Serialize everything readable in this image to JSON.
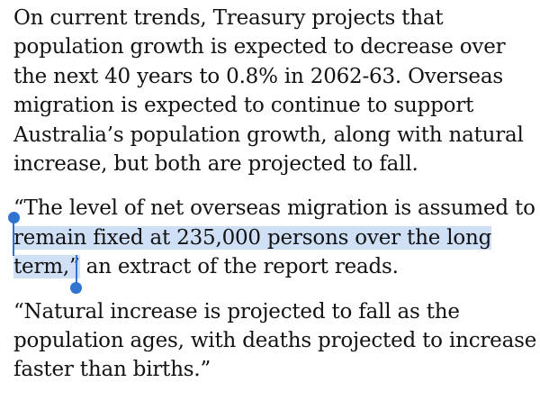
{
  "article": {
    "paragraphs": [
      {
        "lines": [
          "On current trends, Treasury projects that",
          "population growth is expected to decrease over",
          "the next 40 years to 0.8% in 2062-63. Overseas",
          "migration is expected to continue to support",
          "Australia’s population growth, along with natural",
          "increase, but both are projected to fall."
        ]
      },
      {
        "line1_unselected": "“The level of net overseas migration is assumed to",
        "line2_selected": "remain fixed at 235,000 persons over the long",
        "line3_selected": "term,”",
        "line3_rest": " an extract of the report reads."
      },
      {
        "lines": [
          "“Natural increase is projected to fall as the",
          "population ages, with deaths projected to increase",
          "faster than births.”"
        ]
      }
    ]
  },
  "selection": {
    "color": "#cfe0f6",
    "handle_color": "#2f74d0"
  }
}
